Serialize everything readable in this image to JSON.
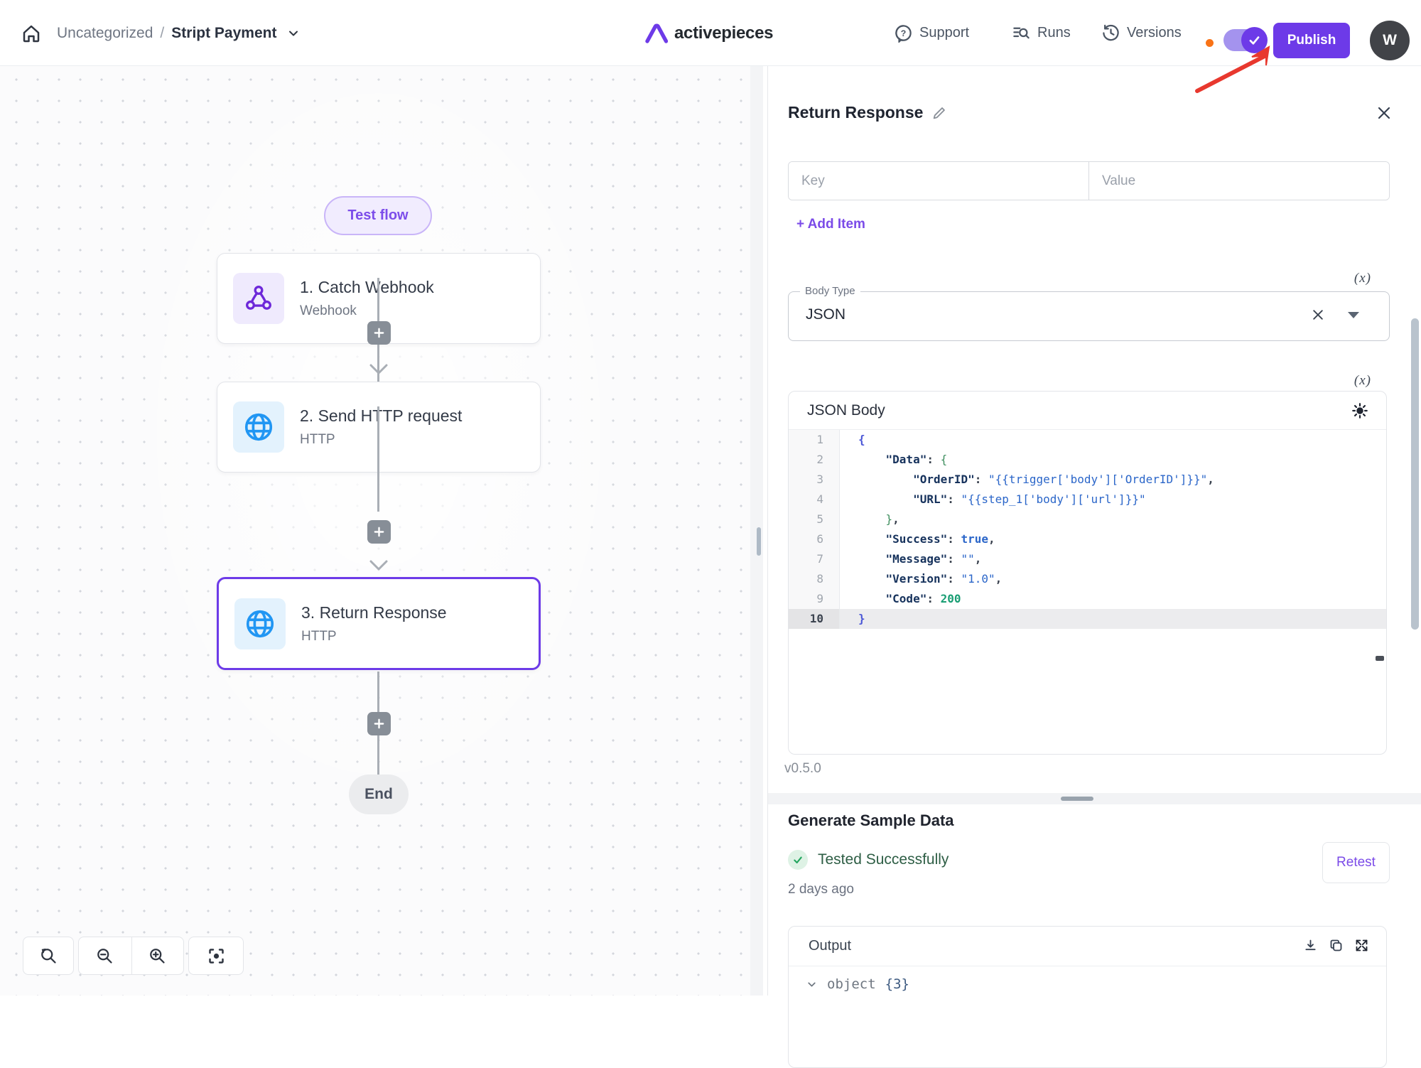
{
  "header": {
    "breadcrumb": {
      "category": "Uncategorized",
      "separator": "/",
      "flow_name": "Stript Payment"
    },
    "logo_text": "activepieces",
    "support_label": "Support",
    "runs_label": "Runs",
    "versions_label": "Versions",
    "publish_label": "Publish",
    "avatar_initial": "W"
  },
  "canvas": {
    "test_flow_label": "Test flow",
    "steps": [
      {
        "title": "1. Catch Webhook",
        "subtitle": "Webhook"
      },
      {
        "title": "2. Send HTTP request",
        "subtitle": "HTTP"
      },
      {
        "title": "3. Return Response",
        "subtitle": "HTTP"
      }
    ],
    "end_label": "End"
  },
  "panel": {
    "title": "Return Response",
    "key_placeholder": "Key",
    "value_placeholder": "Value",
    "add_item_label": "+ Add Item",
    "fx_label": "(x)",
    "body_type": {
      "legend": "Body Type",
      "value": "JSON"
    },
    "json_body": {
      "title": "JSON Body",
      "code_lines": [
        {
          "num": "1",
          "active": false,
          "segs": [
            [
              "c-br",
              "{"
            ]
          ]
        },
        {
          "num": "2",
          "active": false,
          "segs": [
            [
              "",
              "    "
            ],
            [
              "c-key",
              "\"Data\""
            ],
            [
              "c-pun",
              ": "
            ],
            [
              "c-br2",
              "{"
            ]
          ]
        },
        {
          "num": "3",
          "active": false,
          "segs": [
            [
              "",
              "        "
            ],
            [
              "c-key",
              "\"OrderID\""
            ],
            [
              "c-pun",
              ": "
            ],
            [
              "c-str",
              "\"{{trigger['body']['OrderID']}}\""
            ],
            [
              "c-pun",
              ","
            ]
          ]
        },
        {
          "num": "4",
          "active": false,
          "segs": [
            [
              "",
              "        "
            ],
            [
              "c-key",
              "\"URL\""
            ],
            [
              "c-pun",
              ": "
            ],
            [
              "c-str",
              "\"{{step_1['body']['url']}}\""
            ]
          ]
        },
        {
          "num": "5",
          "active": false,
          "segs": [
            [
              "",
              "    "
            ],
            [
              "c-br2",
              "}"
            ],
            [
              "c-pun",
              ","
            ]
          ]
        },
        {
          "num": "6",
          "active": false,
          "segs": [
            [
              "",
              "    "
            ],
            [
              "c-key",
              "\"Success\""
            ],
            [
              "c-pun",
              ": "
            ],
            [
              "c-bool",
              "true"
            ],
            [
              "c-pun",
              ","
            ]
          ]
        },
        {
          "num": "7",
          "active": false,
          "segs": [
            [
              "",
              "    "
            ],
            [
              "c-key",
              "\"Message\""
            ],
            [
              "c-pun",
              ": "
            ],
            [
              "c-str",
              "\"\""
            ],
            [
              "c-pun",
              ","
            ]
          ]
        },
        {
          "num": "8",
          "active": false,
          "segs": [
            [
              "",
              "    "
            ],
            [
              "c-key",
              "\"Version\""
            ],
            [
              "c-pun",
              ": "
            ],
            [
              "c-str",
              "\"1.0\""
            ],
            [
              "c-pun",
              ","
            ]
          ]
        },
        {
          "num": "9",
          "active": false,
          "segs": [
            [
              "",
              "    "
            ],
            [
              "c-key",
              "\"Code\""
            ],
            [
              "c-pun",
              ": "
            ],
            [
              "c-num",
              "200"
            ]
          ]
        },
        {
          "num": "10",
          "active": true,
          "segs": [
            [
              "c-br",
              "}"
            ]
          ]
        }
      ]
    },
    "version_label": "v0.5.0",
    "sample": {
      "heading": "Generate Sample Data",
      "status": "Tested Successfully",
      "retest_label": "Retest",
      "time_ago": "2 days ago"
    },
    "output": {
      "title": "Output",
      "node_name": "object",
      "node_count": "{3}"
    }
  },
  "colors": {
    "accent_purple": "#6d3ae8",
    "selected_border": "#6d3be8",
    "success_green": "#22a55e",
    "versions_dot_orange": "#f97316",
    "annotation_arrow_red": "#e8382e",
    "http_icon_blue": "#2196f3",
    "webhook_icon_purple": "#6d28d9"
  }
}
